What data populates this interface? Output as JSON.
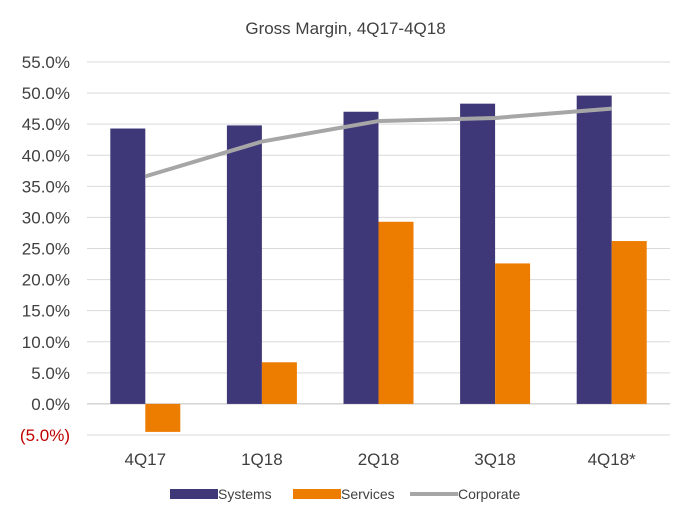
{
  "chart_data": {
    "type": "bar",
    "title": "Gross Margin, 4Q17-4Q18",
    "categories": [
      "4Q17",
      "1Q18",
      "2Q18",
      "3Q18",
      "4Q18*"
    ],
    "series": [
      {
        "name": "Systems",
        "kind": "bar",
        "color": "#3f3878",
        "values": [
          44.3,
          44.8,
          47.0,
          48.3,
          49.6
        ]
      },
      {
        "name": "Services",
        "kind": "bar",
        "color": "#ed7d00",
        "values": [
          -4.5,
          6.7,
          29.3,
          22.6,
          26.2
        ]
      },
      {
        "name": "Corporate",
        "kind": "line",
        "color": "#a6a6a6",
        "values": [
          36.6,
          42.2,
          45.5,
          46.0,
          47.5
        ]
      }
    ],
    "ylim": [
      -5.0,
      55.0
    ],
    "yticks": [
      "(5.0%)",
      "0.0%",
      "5.0%",
      "10.0%",
      "15.0%",
      "20.0%",
      "25.0%",
      "30.0%",
      "35.0%",
      "40.0%",
      "45.0%",
      "50.0%",
      "55.0%"
    ],
    "ytick_values": [
      -5,
      0,
      5,
      10,
      15,
      20,
      25,
      30,
      35,
      40,
      45,
      50,
      55
    ],
    "negative_tick_color": "#c00000",
    "gridlines": true,
    "legend_position": "bottom",
    "xlabel": "",
    "ylabel": ""
  }
}
